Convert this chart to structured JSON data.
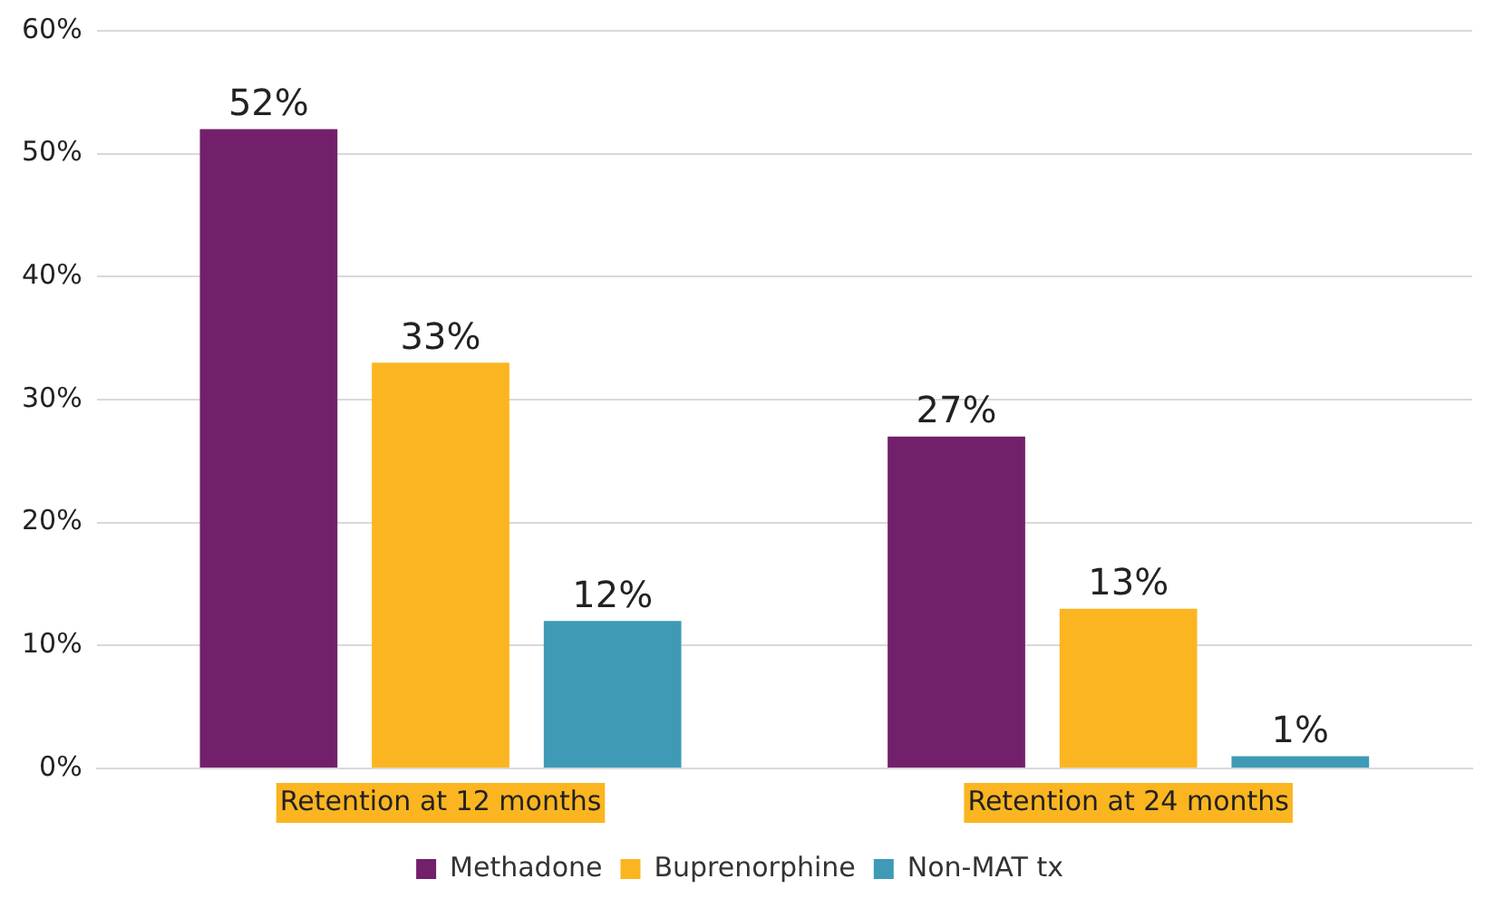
{
  "chart_data": {
    "type": "bar",
    "categories": [
      "Retention at 12 months",
      "Retention at 24 months"
    ],
    "series": [
      {
        "name": "Methadone",
        "color": "#72206b",
        "values": [
          52,
          27
        ],
        "value_labels": [
          "52%",
          "27%"
        ]
      },
      {
        "name": "Buprenorphine",
        "color": "#fbb520",
        "values": [
          33,
          13
        ],
        "value_labels": [
          "33%",
          "13%"
        ]
      },
      {
        "name": "Non-MAT tx",
        "color": "#3f9ab5",
        "values": [
          12,
          1
        ],
        "value_labels": [
          "12%",
          "1%"
        ]
      }
    ],
    "ylim": [
      0,
      60
    ],
    "yticks": [
      {
        "value": 0,
        "label": "0%"
      },
      {
        "value": 10,
        "label": "10%"
      },
      {
        "value": 20,
        "label": "20%"
      },
      {
        "value": 30,
        "label": "30%"
      },
      {
        "value": 40,
        "label": "40%"
      },
      {
        "value": 50,
        "label": "50%"
      },
      {
        "value": 60,
        "label": "60%"
      }
    ],
    "grid": "y",
    "legend": "bottom"
  }
}
